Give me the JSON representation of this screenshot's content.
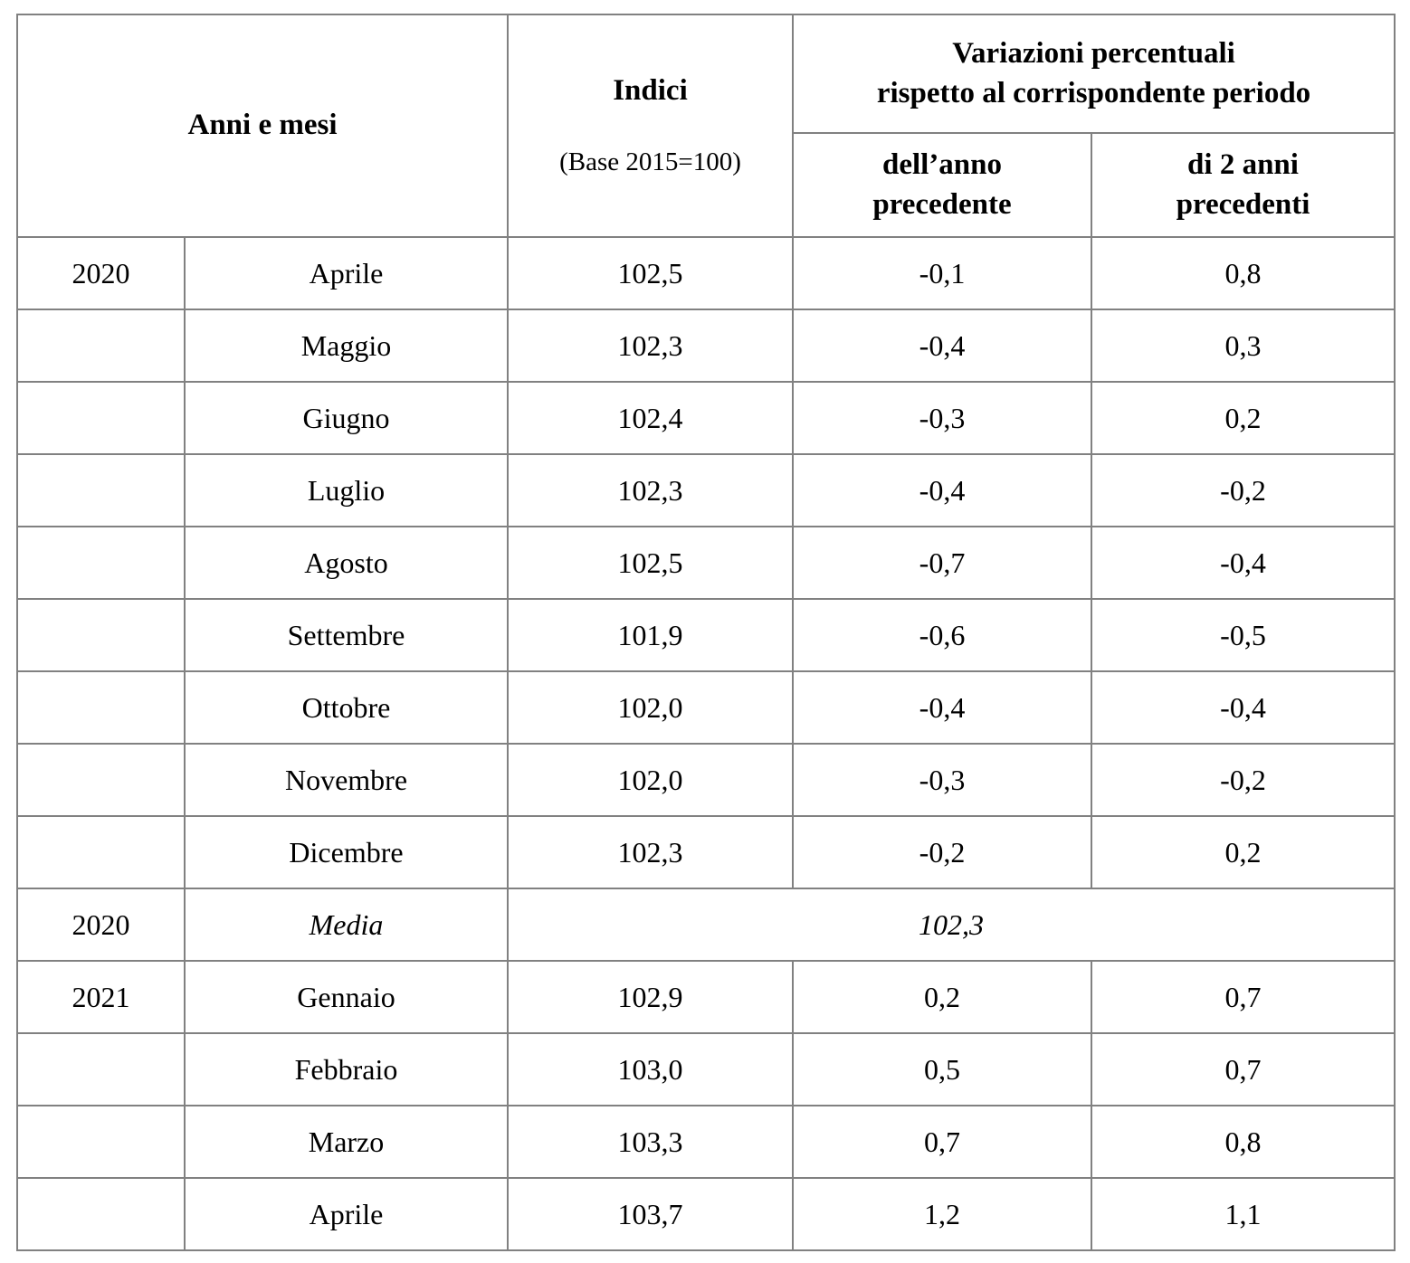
{
  "table": {
    "header": {
      "anni_mesi": "Anni e mesi",
      "indici_title": "Indici",
      "indici_sub": "(Base 2015=100)",
      "variazioni": "Variazioni percentuali\nrispetto al corrispondente periodo",
      "var_prev_year": "dell’anno\nprecedente",
      "var_two_years": "di 2 anni\nprecedenti"
    },
    "rows": [
      {
        "year": "2020",
        "month": "Aprile",
        "index": "102,5",
        "var1": "-0,1",
        "var2": "0,8"
      },
      {
        "year": "",
        "month": "Maggio",
        "index": "102,3",
        "var1": "-0,4",
        "var2": "0,3"
      },
      {
        "year": "",
        "month": "Giugno",
        "index": "102,4",
        "var1": "-0,3",
        "var2": "0,2"
      },
      {
        "year": "",
        "month": "Luglio",
        "index": "102,3",
        "var1": "-0,4",
        "var2": "-0,2"
      },
      {
        "year": "",
        "month": "Agosto",
        "index": "102,5",
        "var1": "-0,7",
        "var2": "-0,4"
      },
      {
        "year": "",
        "month": "Settembre",
        "index": "101,9",
        "var1": "-0,6",
        "var2": "-0,5"
      },
      {
        "year": "",
        "month": "Ottobre",
        "index": "102,0",
        "var1": "-0,4",
        "var2": "-0,4"
      },
      {
        "year": "",
        "month": "Novembre",
        "index": "102,0",
        "var1": "-0,3",
        "var2": "-0,2"
      },
      {
        "year": "",
        "month": "Dicembre",
        "index": "102,3",
        "var1": "-0,2",
        "var2": "0,2"
      },
      {
        "year": "2020",
        "month": "Media",
        "media_value": "102,3",
        "is_media": true
      },
      {
        "year": "2021",
        "month": "Gennaio",
        "index": "102,9",
        "var1": "0,2",
        "var2": "0,7"
      },
      {
        "year": "",
        "month": "Febbraio",
        "index": "103,0",
        "var1": "0,5",
        "var2": "0,7"
      },
      {
        "year": "",
        "month": "Marzo",
        "index": "103,3",
        "var1": "0,7",
        "var2": "0,8"
      },
      {
        "year": "",
        "month": "Aprile",
        "index": "103,7",
        "var1": "1,2",
        "var2": "1,1"
      }
    ]
  }
}
